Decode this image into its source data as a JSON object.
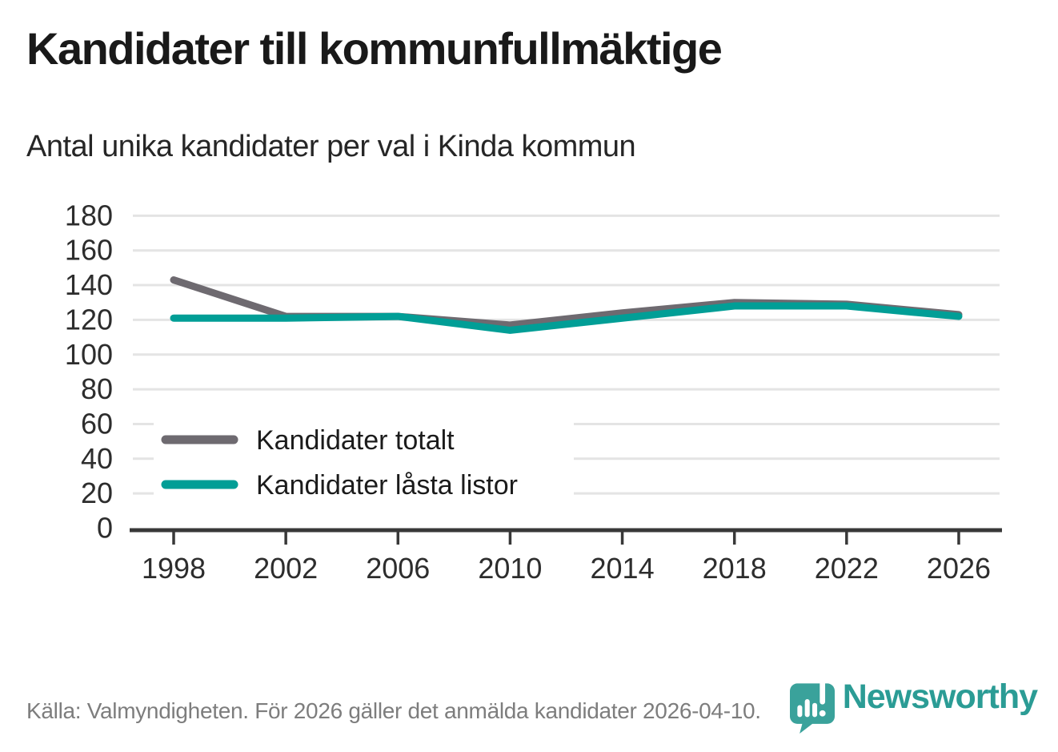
{
  "header": {
    "title": "Kandidater till kommunfullmäktige",
    "subtitle": "Antal unika kandidater per val i Kinda kommun"
  },
  "chart_data": {
    "type": "line",
    "title": "Kandidater till kommunfullmäktige",
    "subtitle": "Antal unika kandidater per val i Kinda kommun",
    "x": [
      1998,
      2002,
      2006,
      2010,
      2014,
      2018,
      2022,
      2026
    ],
    "series": [
      {
        "name": "Kandidater totalt",
        "color": "#6e6a70",
        "values": [
          143,
          122,
          122,
          117,
          124,
          130,
          129,
          123
        ]
      },
      {
        "name": "Kandidater låsta listor",
        "color": "#019e96",
        "values": [
          121,
          121,
          122,
          114,
          121,
          128,
          128,
          122
        ]
      }
    ],
    "xlabel": "",
    "ylabel": "",
    "ylim": [
      0,
      180
    ],
    "ytick_step": 20,
    "grid": "horizontal-light-gray",
    "legend_position": "inside-lower-left",
    "axis_color": "#383838",
    "gridline_color": "#e4e4e4",
    "tick_label_color": "#2d2d2d",
    "legend_text_color": "#1b1b1b"
  },
  "footer": {
    "source": "Källa: Valmyndigheten. För 2026 gäller det anmälda kandidater 2026-04-10."
  },
  "branding": {
    "logo_text": "Newsworthy",
    "logo_pin_color": "#3aa29b",
    "logo_text_color": "#2b9c95"
  }
}
